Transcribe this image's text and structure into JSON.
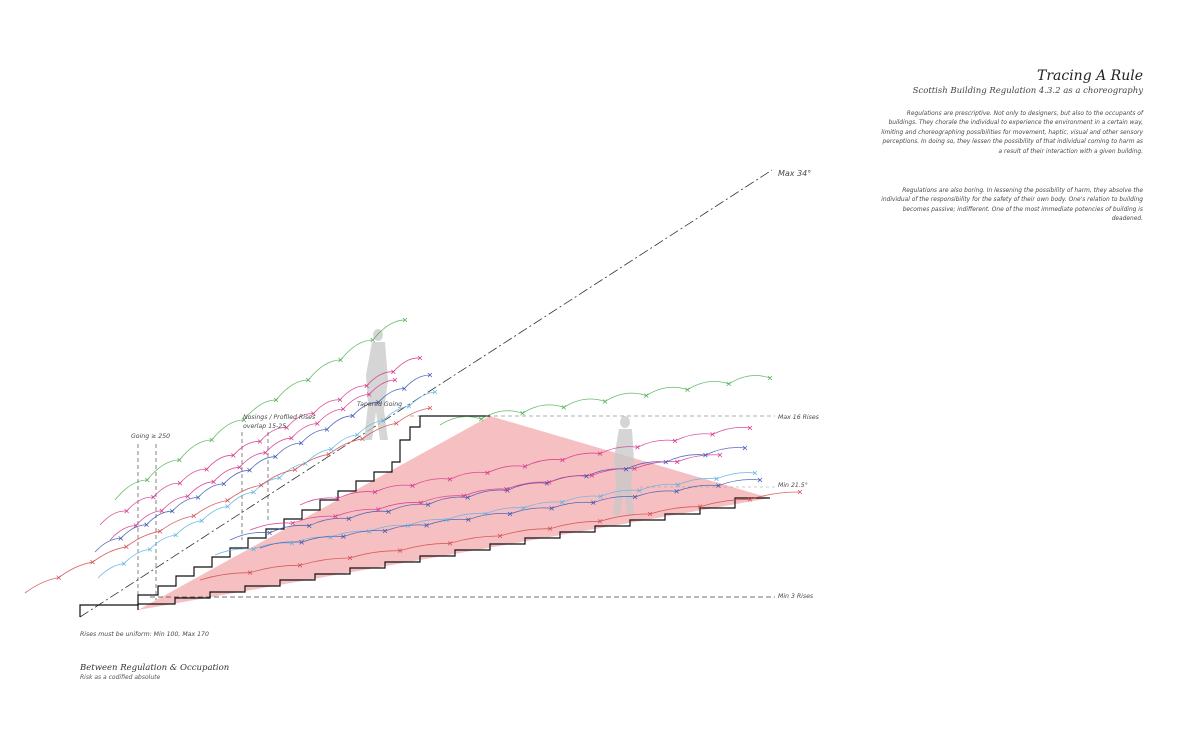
{
  "header": {
    "title": "Tracing A Rule",
    "subtitle": "Scottish Building Regulation 4.3.2 as a choreography"
  },
  "paragraphs": [
    "Regulations are prescriptive. Not only to designers, but also to the occupants of buildings. They chorale the individual to experience the environment in a certain way, limiting and choreographing possibilities for movement, haptic, visual and other sensory perceptions. In doing so, they lessen the possibility of that individual coming to harm as a result of their interaction with a given building.",
    "Regulations are also boring. In lessening the possibility of harm, they absolve the individual of the responsibility for the safety of their own body. One's relation to building becomes passive; indifferent. One of the most immediate potencies of building is deadened."
  ],
  "annotations": {
    "max_angle": "Max 34°",
    "max_16_rises": "Max 16 Rises",
    "min_angle": "Min 21.5°",
    "min_3_rises": "Min 3 Rises",
    "going": "Going ≥ 250",
    "nosings": "Nosings / Profiled Rises overlap 15-25",
    "tapered": "Tapered Going",
    "rises": "Rises must be uniform: Min 100, Max 170"
  },
  "footer": {
    "title": "Between Regulation & Occupation",
    "subtitle": "Risk as a codified absolute"
  },
  "colors": {
    "red_fill": "#f4b5b7",
    "green": "#4caf50",
    "pink": "#d6338a",
    "blue": "#3a55b5",
    "light_blue": "#5fb3e0",
    "red_line": "#d24a4a",
    "grey_figure": "#c8c8c8"
  }
}
